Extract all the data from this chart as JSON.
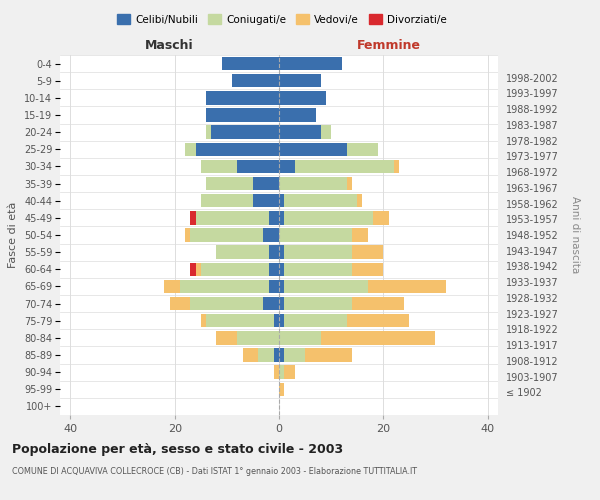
{
  "age_groups": [
    "100+",
    "95-99",
    "90-94",
    "85-89",
    "80-84",
    "75-79",
    "70-74",
    "65-69",
    "60-64",
    "55-59",
    "50-54",
    "45-49",
    "40-44",
    "35-39",
    "30-34",
    "25-29",
    "20-24",
    "15-19",
    "10-14",
    "5-9",
    "0-4"
  ],
  "birth_years": [
    "≤ 1902",
    "1903-1907",
    "1908-1912",
    "1913-1917",
    "1918-1922",
    "1923-1927",
    "1928-1932",
    "1933-1937",
    "1938-1942",
    "1943-1947",
    "1948-1952",
    "1953-1957",
    "1958-1962",
    "1963-1967",
    "1968-1972",
    "1973-1977",
    "1978-1982",
    "1983-1987",
    "1988-1992",
    "1993-1997",
    "1998-2002"
  ],
  "colors": {
    "celibi": "#3a6fad",
    "coniugati": "#c5d9a0",
    "vedovi": "#f5c16c",
    "divorziati": "#d9292e"
  },
  "males": {
    "celibi": [
      0,
      0,
      0,
      1,
      0,
      1,
      3,
      2,
      2,
      2,
      3,
      2,
      5,
      5,
      8,
      16,
      13,
      14,
      14,
      9,
      11
    ],
    "coniugati": [
      0,
      0,
      0,
      3,
      8,
      13,
      14,
      17,
      13,
      10,
      14,
      14,
      10,
      9,
      7,
      2,
      1,
      0,
      0,
      0,
      0
    ],
    "vedovi": [
      0,
      0,
      1,
      3,
      4,
      1,
      4,
      3,
      1,
      0,
      1,
      0,
      0,
      0,
      0,
      0,
      0,
      0,
      0,
      0,
      0
    ],
    "divorziati": [
      0,
      0,
      0,
      0,
      0,
      0,
      0,
      0,
      1,
      0,
      0,
      1,
      0,
      0,
      0,
      0,
      0,
      0,
      0,
      0,
      0
    ]
  },
  "females": {
    "celibi": [
      0,
      0,
      0,
      1,
      0,
      1,
      1,
      1,
      1,
      1,
      0,
      1,
      1,
      0,
      3,
      13,
      8,
      7,
      9,
      8,
      12
    ],
    "coniugati": [
      0,
      0,
      1,
      4,
      8,
      12,
      13,
      16,
      13,
      13,
      14,
      17,
      14,
      13,
      19,
      6,
      2,
      0,
      0,
      0,
      0
    ],
    "vedovi": [
      0,
      1,
      2,
      9,
      22,
      12,
      10,
      15,
      6,
      6,
      3,
      3,
      1,
      1,
      1,
      0,
      0,
      0,
      0,
      0,
      0
    ],
    "divorziati": [
      0,
      0,
      0,
      0,
      0,
      0,
      0,
      0,
      0,
      0,
      0,
      0,
      0,
      0,
      0,
      0,
      0,
      0,
      0,
      0,
      0
    ]
  },
  "xlim": 42,
  "title": "Popolazione per età, sesso e stato civile - 2003",
  "subtitle": "COMUNE DI ACQUAVIVA COLLECROCE (CB) - Dati ISTAT 1° gennaio 2003 - Elaborazione TUTTITALIA.IT",
  "ylabel": "Fasce di età",
  "ylabel_right": "Anni di nascita",
  "xlabel_left": "Maschi",
  "xlabel_right": "Femmine",
  "legend_labels": [
    "Celibi/Nubili",
    "Coniugati/e",
    "Vedovi/e",
    "Divorziati/e"
  ],
  "bg_color": "#f0f0f0",
  "plot_bg_color": "#ffffff"
}
